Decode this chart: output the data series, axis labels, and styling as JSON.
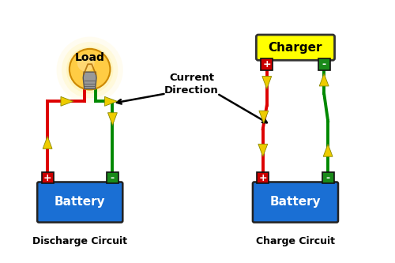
{
  "bg_color": "#ffffff",
  "discharge_label": "Discharge Circuit",
  "charge_label": "Charge Circuit",
  "current_direction_label": "Current\nDirection",
  "battery_color": "#1a6fd4",
  "battery_text": "Battery",
  "battery_text_color": "#ffffff",
  "pos_terminal_color": "#cc0000",
  "neg_terminal_color": "#1a8a1a",
  "wire_red": "#dd0000",
  "wire_green": "#008800",
  "arrow_color": "#eecc00",
  "charger_bg": "#ffff00",
  "charger_text": "Charger",
  "load_text": "Load",
  "bulb_outer": "#ffcc44",
  "bulb_inner": "#ffdd88",
  "bulb_neck": "#888888"
}
